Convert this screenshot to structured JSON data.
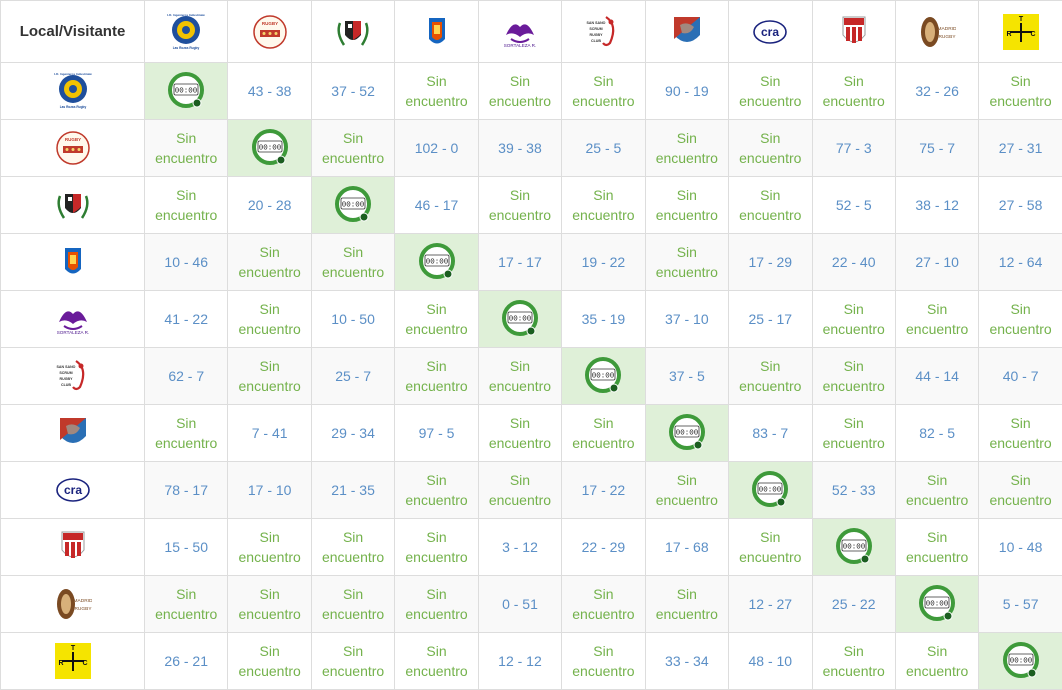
{
  "header": {
    "corner_label": "Local/Visitante"
  },
  "colors": {
    "result": "#5b8fc6",
    "no_match": "#74b24c",
    "self_cell": "#dff0d8",
    "clock": "#3e9a3a"
  },
  "teams": [
    {
      "id": "t1",
      "logo_icon": "round-blue-crest-icon",
      "logo_lines": [
        "A.D. Ingenieros Industriales",
        "Las Rozas Rugby"
      ]
    },
    {
      "id": "t2",
      "logo_icon": "circular-rugby-badge-icon",
      "logo_lines": [
        "RUGBY"
      ]
    },
    {
      "id": "t3",
      "logo_icon": "laurel-shield-icon",
      "logo_lines": []
    },
    {
      "id": "t4",
      "logo_icon": "round-red-crest-icon",
      "logo_lines": []
    },
    {
      "id": "t5",
      "logo_icon": "purple-dragon-icon",
      "logo_lines": [
        "SORTALEZA R."
      ]
    },
    {
      "id": "t6",
      "logo_icon": "san-sano-scrum-icon",
      "logo_lines": [
        "SAN SANO SCRUM RUGBY CLUB"
      ]
    },
    {
      "id": "t7",
      "logo_icon": "red-blue-shield-icon",
      "logo_lines": []
    },
    {
      "id": "t8",
      "logo_icon": "cra-swoosh-icon",
      "logo_lines": [
        "cra"
      ]
    },
    {
      "id": "t9",
      "logo_icon": "red-striped-shield-icon",
      "logo_lines": []
    },
    {
      "id": "t10",
      "logo_icon": "madrid-rugby-oval-icon",
      "logo_lines": [
        "MADRID",
        "RUGBY"
      ]
    },
    {
      "id": "t11",
      "logo_icon": "trc-yellow-square-icon",
      "logo_lines": [
        "T",
        "R",
        "C"
      ]
    }
  ],
  "clock": {
    "icon": "clock-icon",
    "time_text": "00:00"
  },
  "rows": [
    [
      "__self__",
      "43 - 38",
      "37 - 52",
      "Sin encuentro",
      "Sin encuentro",
      "Sin encuentro",
      "90 - 19",
      "Sin encuentro",
      "Sin encuentro",
      "32 - 26",
      "Sin encuentro"
    ],
    [
      "Sin encuentro",
      "__self__",
      "Sin encuentro",
      "102 - 0",
      "39 - 38",
      "25 - 5",
      "Sin encuentro",
      "Sin encuentro",
      "77 - 3",
      "75 - 7",
      "27 - 31"
    ],
    [
      "Sin encuentro",
      "20 - 28",
      "__self__",
      "46 - 17",
      "Sin encuentro",
      "Sin encuentro",
      "Sin encuentro",
      "Sin encuentro",
      "52 - 5",
      "38 - 12",
      "27 - 58"
    ],
    [
      "10 - 46",
      "Sin encuentro",
      "Sin encuentro",
      "__self__",
      "17 - 17",
      "19 - 22",
      "Sin encuentro",
      "17 - 29",
      "22 - 40",
      "27 - 10",
      "12 - 64"
    ],
    [
      "41 - 22",
      "Sin encuentro",
      "10 - 50",
      "Sin encuentro",
      "__self__",
      "35 - 19",
      "37 - 10",
      "25 - 17",
      "Sin encuentro",
      "Sin encuentro",
      "Sin encuentro"
    ],
    [
      "62 - 7",
      "Sin encuentro",
      "25 - 7",
      "Sin encuentro",
      "Sin encuentro",
      "__self__",
      "37 - 5",
      "Sin encuentro",
      "Sin encuentro",
      "44 - 14",
      "40 - 7"
    ],
    [
      "Sin encuentro",
      "7 - 41",
      "29 - 34",
      "97 - 5",
      "Sin encuentro",
      "Sin encuentro",
      "__self__",
      "83 - 7",
      "Sin encuentro",
      "82 - 5",
      "Sin encuentro"
    ],
    [
      "78 - 17",
      "17 - 10",
      "21 - 35",
      "Sin encuentro",
      "Sin encuentro",
      "17 - 22",
      "Sin encuentro",
      "__self__",
      "52 - 33",
      "Sin encuentro",
      "Sin encuentro"
    ],
    [
      "15 - 50",
      "Sin encuentro",
      "Sin encuentro",
      "Sin encuentro",
      "3 - 12",
      "22 - 29",
      "17 - 68",
      "Sin encuentro",
      "__self__",
      "Sin encuentro",
      "10 - 48"
    ],
    [
      "Sin encuentro",
      "Sin encuentro",
      "Sin encuentro",
      "Sin encuentro",
      "0 - 51",
      "Sin encuentro",
      "Sin encuentro",
      "12 - 27",
      "25 - 22",
      "__self__",
      "5 - 57"
    ],
    [
      "26 - 21",
      "Sin encuentro",
      "Sin encuentro",
      "Sin encuentro",
      "12 - 12",
      "Sin encuentro",
      "33 - 34",
      "48 - 10",
      "Sin encuentro",
      "Sin encuentro",
      "__self__"
    ]
  ]
}
